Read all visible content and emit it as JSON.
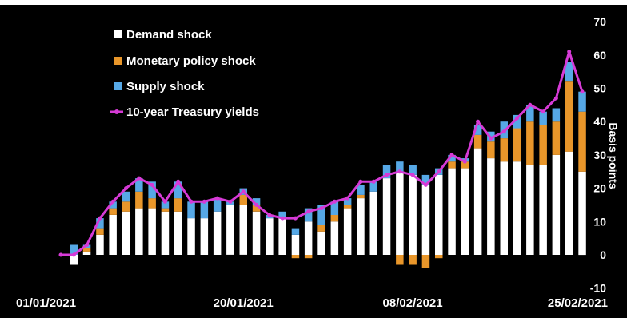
{
  "chart_data": {
    "type": "bar",
    "stacked": true,
    "title": "",
    "ylabel": "Basis points",
    "xlabel": "",
    "ylim": [
      -10,
      70
    ],
    "y_ticks": [
      70,
      60,
      50,
      40,
      30,
      20,
      10,
      0,
      -10
    ],
    "x_tick_labels": [
      "01/01/2021",
      "20/01/2021",
      "08/02/2021",
      "25/02/2021"
    ],
    "grid": false,
    "legend_position": "top-left",
    "colors": {
      "background": "#000000",
      "demand": "#ffffff",
      "monetary": "#e8962a",
      "supply": "#56a8e6",
      "yields": "#d63ad6"
    },
    "series": [
      {
        "name": "Demand shock",
        "type": "bar",
        "values": [
          0,
          -3,
          1,
          6,
          12,
          13,
          14,
          14,
          13,
          13,
          11,
          11,
          13,
          15,
          15,
          13,
          11,
          11,
          6,
          10,
          7,
          10,
          14,
          17,
          19,
          23,
          25,
          24,
          21,
          24,
          26,
          26,
          32,
          29,
          28,
          28,
          27,
          27,
          30,
          31,
          25
        ]
      },
      {
        "name": "Monetary policy shock",
        "type": "bar",
        "values": [
          0,
          0,
          1,
          2,
          2,
          3,
          5,
          3,
          1,
          4,
          0,
          0,
          0,
          0,
          3,
          2,
          0,
          0,
          -1,
          -1,
          2,
          2,
          1,
          1,
          0,
          0,
          -3,
          -3,
          -4,
          -1,
          2,
          2,
          4,
          5,
          7,
          10,
          13,
          12,
          10,
          21,
          18
        ]
      },
      {
        "name": "Supply shock",
        "type": "bar",
        "values": [
          0,
          3,
          1,
          3,
          2,
          3,
          4,
          5,
          2,
          5,
          5,
          5,
          4,
          1,
          2,
          2,
          1,
          2,
          2,
          4,
          6,
          4,
          2,
          3,
          3,
          4,
          3,
          3,
          3,
          2,
          2,
          1,
          3,
          3,
          5,
          4,
          5,
          4,
          4,
          6,
          6
        ]
      },
      {
        "name": "10-year Treasury yields",
        "type": "line",
        "values": [
          0,
          0,
          3,
          11,
          16,
          20,
          23,
          21,
          16,
          22,
          16,
          16,
          17,
          16,
          19,
          15,
          12,
          11,
          11,
          13,
          14,
          16,
          17,
          22,
          22,
          24,
          25,
          24,
          21,
          25,
          30,
          28,
          40,
          35,
          37,
          41,
          45,
          43,
          47,
          61,
          49
        ]
      }
    ]
  },
  "chart_title": "",
  "legend": {
    "demand": "Demand shock",
    "monetary": "Monetary policy shock",
    "supply": "Supply shock",
    "yields": "10-year Treasury yields"
  }
}
